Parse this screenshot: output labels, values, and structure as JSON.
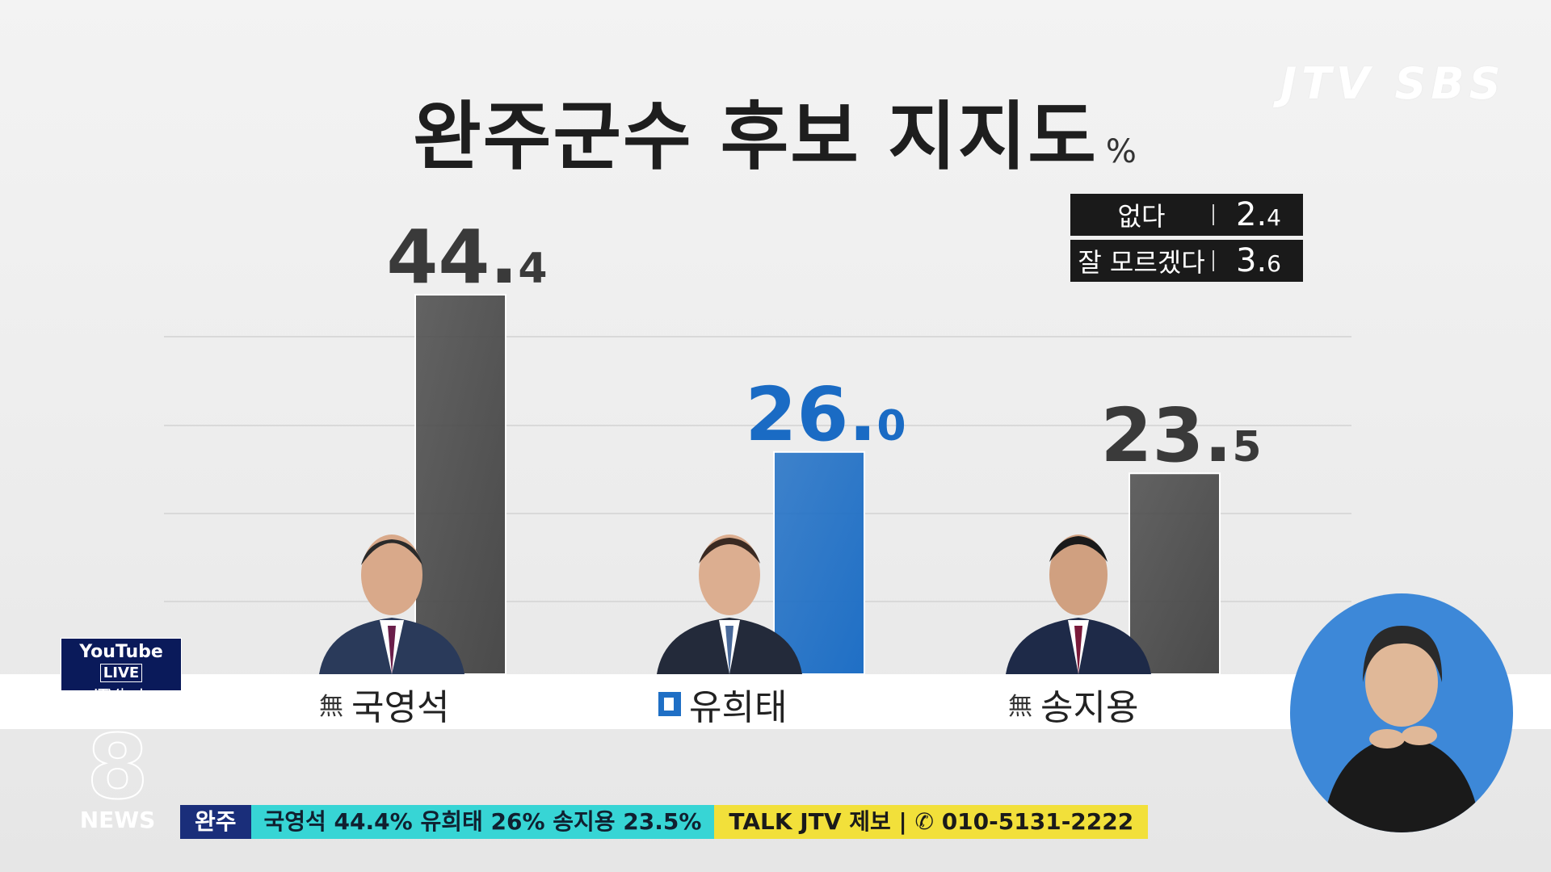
{
  "broadcaster_logo": "JTV SBS",
  "title": "완주군수 후보 지지도",
  "title_unit": "%",
  "legend": [
    {
      "label": "없다",
      "value_int": "2.",
      "value_dec": "4"
    },
    {
      "label": "잘 모르겠다",
      "value_int": "3.",
      "value_dec": "6"
    }
  ],
  "chart_data": {
    "type": "bar",
    "title": "완주군수 후보 지지도",
    "unit": "%",
    "categories": [
      "국영석",
      "유희태",
      "송지용"
    ],
    "values": [
      44.4,
      26.0,
      23.5
    ],
    "value_labels": [
      {
        "int": "44.",
        "dec": "4"
      },
      {
        "int": "26.",
        "dec": "0"
      },
      {
        "int": "23.",
        "dec": "5"
      }
    ],
    "parties": [
      "無",
      "더불어민주당",
      "無"
    ],
    "colors": [
      "#4a4a4a",
      "#1f6fc5",
      "#4a4a4a"
    ],
    "label_colors": [
      "#3a3a3a",
      "#1a6bc4",
      "#3a3a3a"
    ],
    "others": [
      {
        "label": "없다",
        "value": 2.4
      },
      {
        "label": "잘 모르겠다",
        "value": 3.6
      }
    ],
    "grid": true,
    "legend": "top-right"
  },
  "candidates": [
    {
      "party_mark": "無",
      "name": "국영석"
    },
    {
      "party_mark": "",
      "name": "유희태"
    },
    {
      "party_mark": "無",
      "name": "송지용"
    }
  ],
  "youtube_badge": {
    "brand": "YouTube",
    "live": "LIVE",
    "channel": "JTV뉴스"
  },
  "news_logo": {
    "number": "8",
    "text": "NEWS"
  },
  "ticker": {
    "region": "완주",
    "headline": "국영석 44.4% 유희태 26% 송지용 23.5%",
    "tip": "TALK JTV 제보 | ✆ 010-5131-2222"
  }
}
